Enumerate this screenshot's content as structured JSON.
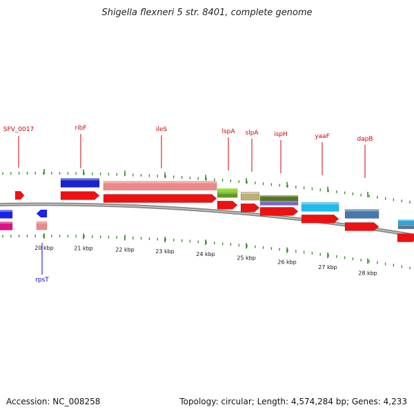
{
  "title": "Shigella flexneri 5 str. 8401, complete genome",
  "footer": {
    "accession": "Accession: NC_008258",
    "summary": "Topology: circular; Length: 4,574,284 bp; Genes: 4,233"
  },
  "colors": {
    "backbone": "#8a8a8a",
    "tick": "#2e8b22",
    "label_forward": "#cc0000",
    "label_reverse": "#0000cc",
    "cds": "#ee1111",
    "ribF": "#1a22cc",
    "ileS": "#ee8888",
    "lspA_a": "#88dd22",
    "lspA_b": "#669922",
    "slpA_a": "#bbb077",
    "slpA_b": "#668833",
    "ispH_a": "#557722",
    "ispH_b": "#7766cc",
    "yaaF": "#22bbee",
    "dapB": "#4477aa",
    "next_a": "#22aadd",
    "next_b": "#557799",
    "rev_blue": "#1a22ee",
    "rev_pink": "#dd1188",
    "rpsT": "#ee8888"
  },
  "ticks": [
    "20 kbp",
    "21 kbp",
    "22 kbp",
    "23 kbp",
    "24 kbp",
    "25 kbp",
    "26 kbp",
    "27 kbp",
    "28 kbp"
  ],
  "genes_forward": [
    "SFV_0017",
    "ribF",
    "ileS",
    "lspA",
    "slpA",
    "ispH",
    "yaaF",
    "dapB"
  ],
  "genes_reverse": [
    "rpsT"
  ]
}
